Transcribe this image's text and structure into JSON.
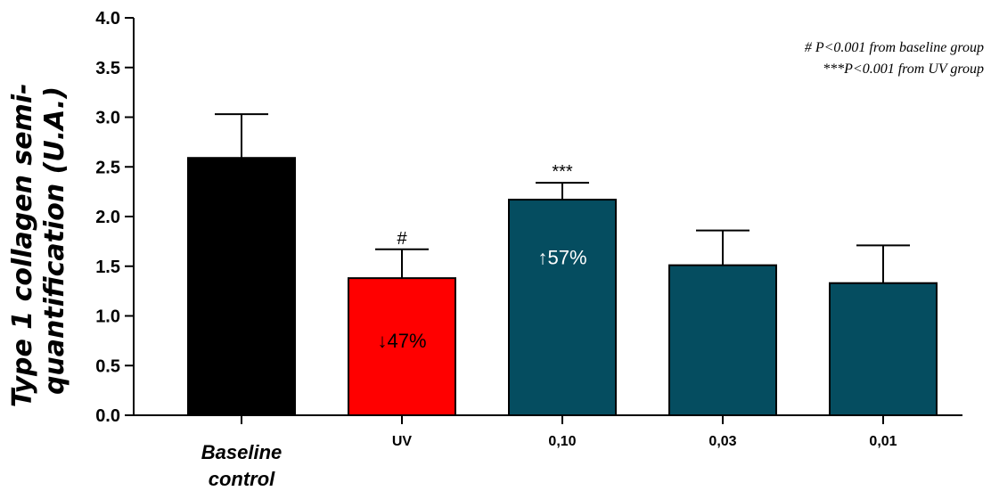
{
  "chart_data": {
    "type": "bar",
    "categories": [
      "Baseline control",
      "UV",
      "0,10",
      "0,03",
      "0,01"
    ],
    "category_lines": [
      [
        "Baseline",
        "control"
      ],
      [
        "UV"
      ],
      [
        "0,10"
      ],
      [
        "0,03"
      ],
      [
        "0,01"
      ]
    ],
    "values": [
      2.59,
      1.38,
      2.17,
      1.51,
      1.33
    ],
    "error_upper": [
      3.03,
      1.67,
      2.34,
      1.86,
      1.71
    ],
    "colors": [
      "#000000",
      "#ff0000",
      "#054d60",
      "#054d60",
      "#054d60"
    ],
    "ylabel_lines": [
      "Type 1 collagen semi-",
      "quantification (U.A.)"
    ],
    "ylim": [
      0,
      4
    ],
    "yticks": [
      "0.0",
      "0.5",
      "1.0",
      "1.5",
      "2.0",
      "2.5",
      "3.0",
      "3.5",
      "4.0"
    ],
    "significance": [
      "",
      "#",
      "***",
      "",
      ""
    ],
    "percent_labels": [
      "",
      "↓47%",
      "↑57%",
      "",
      ""
    ],
    "percent_label_colors": [
      "",
      "#000000",
      "#ffffff",
      "",
      ""
    ],
    "legend": [
      "# P<0.001 from baseline group",
      "***P<0.001 from UV group"
    ],
    "legend_position": "top-right",
    "grid": false
  }
}
